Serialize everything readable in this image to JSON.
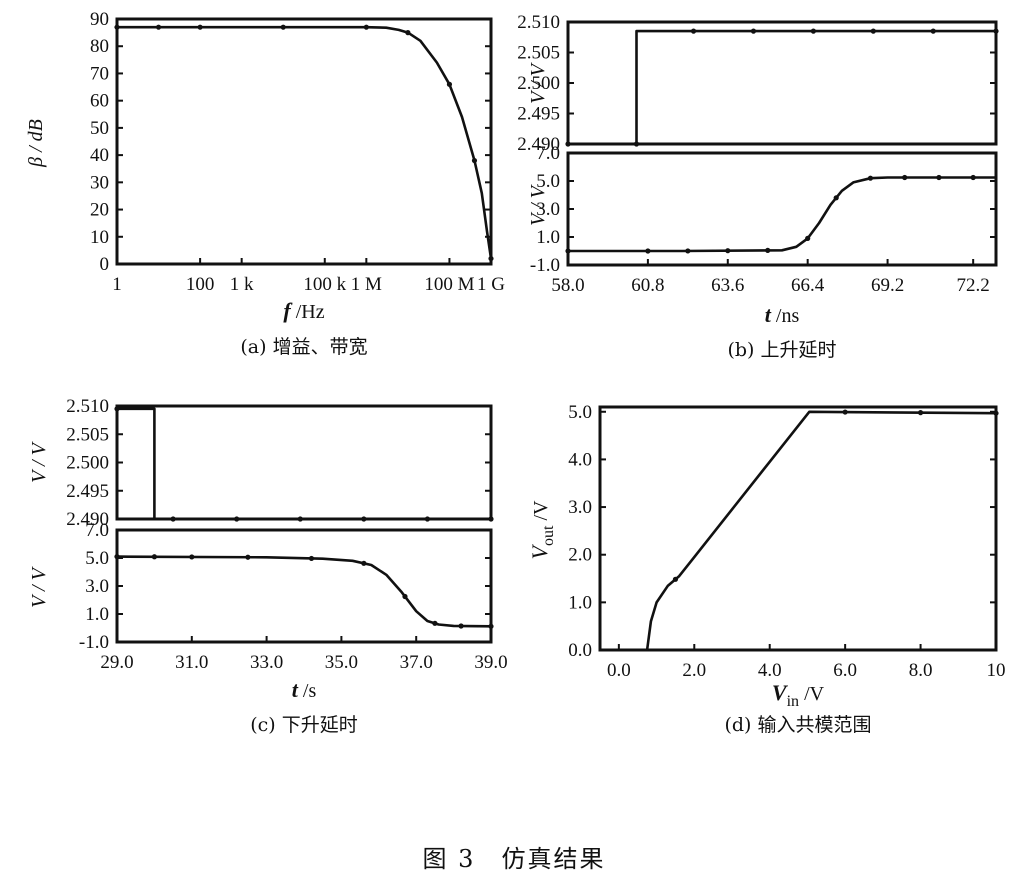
{
  "figure_caption": "图 3　仿真结果",
  "chart_data": [
    {
      "id": "a",
      "type": "line",
      "caption": "(a) 增益、带宽",
      "xscale": "log",
      "xlabel_var": "f",
      "xlabel_unit": " /Hz",
      "ylabel": "β / dB",
      "xlim": [
        1,
        1000000000
      ],
      "ylim": [
        0,
        90
      ],
      "x_ticks": [
        {
          "v": 1,
          "label": "1"
        },
        {
          "v": 100,
          "label": "100"
        },
        {
          "v": 1000,
          "label": "1 k"
        },
        {
          "v": 100000,
          "label": "100 k"
        },
        {
          "v": 1000000,
          "label": "1 M"
        },
        {
          "v": 100000000,
          "label": "100 M"
        },
        {
          "v": 1000000000,
          "label": "1 G"
        }
      ],
      "y_ticks": [
        {
          "v": 90,
          "label": "90"
        },
        {
          "v": 80,
          "label": "80"
        },
        {
          "v": 70,
          "label": "70"
        },
        {
          "v": 60,
          "label": "60"
        },
        {
          "v": 50,
          "label": "50"
        },
        {
          "v": 40,
          "label": "40"
        },
        {
          "v": 30,
          "label": "30"
        },
        {
          "v": 20,
          "label": "20"
        },
        {
          "v": 10,
          "label": "10"
        },
        {
          "v": 0,
          "label": "0"
        }
      ],
      "series": [
        {
          "points": [
            [
              1,
              87
            ],
            [
              100,
              87
            ],
            [
              1000,
              87
            ],
            [
              100000,
              87
            ],
            [
              1000000,
              87
            ],
            [
              3000000,
              86.8
            ],
            [
              6000000,
              86
            ],
            [
              10000000,
              85
            ],
            [
              20000000,
              82
            ],
            [
              50000000,
              74
            ],
            [
              100000000,
              66
            ],
            [
              200000000,
              54
            ],
            [
              400000000,
              38
            ],
            [
              600000000,
              26
            ],
            [
              800000000,
              12
            ],
            [
              1000000000,
              2
            ]
          ],
          "markers": [
            1,
            10,
            100,
            10000,
            1000000,
            10000000,
            100000000,
            400000000,
            1000000000
          ]
        }
      ]
    },
    {
      "id": "b_top",
      "type": "line",
      "caption": "",
      "xscale": "linear",
      "xlabel_var": "",
      "xlabel_unit": "",
      "ylabel": "V / V",
      "xlim": [
        58.0,
        73.0
      ],
      "ylim": [
        2.49,
        2.51
      ],
      "x_ticks": [],
      "y_ticks": [
        {
          "v": 2.51,
          "label": "2.510"
        },
        {
          "v": 2.505,
          "label": "2.505"
        },
        {
          "v": 2.5,
          "label": "2.500"
        },
        {
          "v": 2.495,
          "label": "2.495"
        },
        {
          "v": 2.49,
          "label": "2.490"
        }
      ],
      "series": [
        {
          "points": [
            [
              58.0,
              2.49
            ],
            [
              60.4,
              2.49
            ],
            [
              60.4,
              2.5085
            ],
            [
              73.0,
              2.5085
            ]
          ],
          "markers": [
            58.0,
            60.4,
            62.4,
            64.5,
            66.6,
            68.7,
            70.8,
            73.0
          ]
        }
      ]
    },
    {
      "id": "b_bottom",
      "type": "line",
      "caption": "(b) 上升延时",
      "xscale": "linear",
      "xlabel_var": "t",
      "xlabel_unit": " /ns",
      "ylabel": "V / V",
      "xlim": [
        58.0,
        73.0
      ],
      "ylim": [
        -1.0,
        7.0
      ],
      "x_ticks": [
        {
          "v": 58.0,
          "label": "58.0"
        },
        {
          "v": 60.8,
          "label": "60.8"
        },
        {
          "v": 63.6,
          "label": "63.6"
        },
        {
          "v": 66.4,
          "label": "66.4"
        },
        {
          "v": 69.2,
          "label": "69.2"
        },
        {
          "v": 72.2,
          "label": "72.2"
        }
      ],
      "y_ticks": [
        {
          "v": 7.0,
          "label": "7.0"
        },
        {
          "v": 5.0,
          "label": "5.0"
        },
        {
          "v": 3.0,
          "label": "3.0"
        },
        {
          "v": 1.0,
          "label": "1.0"
        },
        {
          "v": -1.0,
          "label": "-1.0"
        }
      ],
      "series": [
        {
          "points": [
            [
              58.0,
              0.0
            ],
            [
              62,
              0.0
            ],
            [
              65.5,
              0.05
            ],
            [
              66.0,
              0.3
            ],
            [
              66.4,
              0.9
            ],
            [
              66.8,
              2.0
            ],
            [
              67.2,
              3.3
            ],
            [
              67.6,
              4.3
            ],
            [
              68.0,
              4.9
            ],
            [
              68.6,
              5.2
            ],
            [
              69.2,
              5.25
            ],
            [
              73.0,
              5.25
            ]
          ],
          "markers": [
            58.0,
            60.8,
            62.2,
            63.6,
            65.0,
            66.4,
            67.4,
            68.6,
            69.8,
            71.0,
            72.2
          ]
        }
      ]
    },
    {
      "id": "c_top",
      "type": "line",
      "caption": "",
      "xscale": "linear",
      "xlabel_var": "",
      "xlabel_unit": "",
      "ylabel": "V / V",
      "xlim": [
        29.0,
        39.0
      ],
      "ylim": [
        2.49,
        2.51
      ],
      "x_ticks": [],
      "y_ticks": [
        {
          "v": 2.51,
          "label": "2.510"
        },
        {
          "v": 2.505,
          "label": "2.505"
        },
        {
          "v": 2.5,
          "label": "2.500"
        },
        {
          "v": 2.495,
          "label": "2.495"
        },
        {
          "v": 2.49,
          "label": "2.490"
        }
      ],
      "series": [
        {
          "points": [
            [
              29.0,
              2.5095
            ],
            [
              30.0,
              2.5095
            ],
            [
              30.0,
              2.49
            ],
            [
              39.0,
              2.49
            ]
          ],
          "markers": [
            29.0,
            30.5,
            32.2,
            33.9,
            35.6,
            37.3,
            39.0
          ]
        }
      ]
    },
    {
      "id": "c_bottom",
      "type": "line",
      "caption": "(c) 下升延时",
      "xscale": "linear",
      "xlabel_var": "t",
      "xlabel_unit": " /s",
      "ylabel": "V / V",
      "xlim": [
        29.0,
        39.0
      ],
      "ylim": [
        -1.0,
        7.0
      ],
      "x_ticks": [
        {
          "v": 29.0,
          "label": "29.0"
        },
        {
          "v": 31.0,
          "label": "31.0"
        },
        {
          "v": 33.0,
          "label": "33.0"
        },
        {
          "v": 35.0,
          "label": "35.0"
        },
        {
          "v": 37.0,
          "label": "37.0"
        },
        {
          "v": 39.0,
          "label": "39.0"
        }
      ],
      "y_ticks": [
        {
          "v": 7.0,
          "label": "7.0"
        },
        {
          "v": 5.0,
          "label": "5.0"
        },
        {
          "v": 3.0,
          "label": "3.0"
        },
        {
          "v": 1.0,
          "label": "1.0"
        },
        {
          "v": -1.0,
          "label": "-1.0"
        }
      ],
      "series": [
        {
          "points": [
            [
              29.0,
              5.1
            ],
            [
              33.0,
              5.05
            ],
            [
              34.5,
              4.95
            ],
            [
              35.3,
              4.8
            ],
            [
              35.8,
              4.5
            ],
            [
              36.2,
              3.8
            ],
            [
              36.6,
              2.6
            ],
            [
              37.0,
              1.2
            ],
            [
              37.3,
              0.5
            ],
            [
              37.6,
              0.25
            ],
            [
              38.0,
              0.15
            ],
            [
              39.0,
              0.12
            ]
          ],
          "markers": [
            29.0,
            30.0,
            31.0,
            32.5,
            34.2,
            35.6,
            36.7,
            37.5,
            38.2,
            39.0
          ]
        }
      ]
    },
    {
      "id": "d",
      "type": "line",
      "caption": "(d) 输入共模范围",
      "xscale": "linear",
      "xlabel_var": "V",
      "xlabel_sub": "in",
      "xlabel_unit": " /V",
      "ylabel_var": "V",
      "ylabel_sub": "out",
      "ylabel_unit": " /V",
      "ylabel": "",
      "xlim": [
        -0.5,
        10.0
      ],
      "ylim": [
        0.0,
        5.1
      ],
      "x_ticks": [
        {
          "v": 0.0,
          "label": "0.0"
        },
        {
          "v": 2.0,
          "label": "2.0"
        },
        {
          "v": 4.0,
          "label": "4.0"
        },
        {
          "v": 6.0,
          "label": "6.0"
        },
        {
          "v": 8.0,
          "label": "8.0"
        },
        {
          "v": 10.0,
          "label": "10"
        }
      ],
      "y_ticks": [
        {
          "v": 5.0,
          "label": "5.0"
        },
        {
          "v": 4.0,
          "label": "4.0"
        },
        {
          "v": 3.0,
          "label": "3.0"
        },
        {
          "v": 2.0,
          "label": "2.0"
        },
        {
          "v": 1.0,
          "label": "1.0"
        },
        {
          "v": 0.0,
          "label": "0.0"
        }
      ],
      "series": [
        {
          "points": [
            [
              -0.5,
              0.0
            ],
            [
              0.75,
              0.0
            ],
            [
              0.85,
              0.6
            ],
            [
              1.0,
              1.0
            ],
            [
              1.3,
              1.35
            ],
            [
              1.6,
              1.55
            ],
            [
              2.0,
              1.95
            ],
            [
              3.0,
              2.95
            ],
            [
              4.0,
              3.95
            ],
            [
              5.05,
              5.0
            ],
            [
              10.0,
              4.97
            ]
          ],
          "markers": [
            1.5,
            6.0,
            8.0,
            10.0
          ]
        }
      ]
    }
  ]
}
